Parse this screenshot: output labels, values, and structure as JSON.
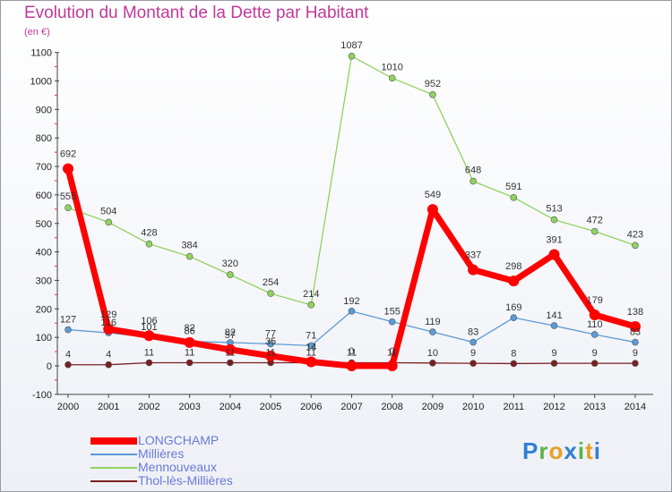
{
  "title": "Evolution du Montant de la Dette par Habitant",
  "subtitle": "(en €)",
  "logo": {
    "text": "Proxiti",
    "letters": [
      {
        "ch": "P",
        "color": "#2f7fd6"
      },
      {
        "ch": "r",
        "color": "#58b34a"
      },
      {
        "ch": "o",
        "color": "#e7a025"
      },
      {
        "ch": "x",
        "color": "#2f7fd6"
      },
      {
        "ch": "i",
        "color": "#58b34a"
      },
      {
        "ch": "t",
        "color": "#e7a025"
      },
      {
        "ch": "i",
        "color": "#2f7fd6"
      }
    ]
  },
  "chart_data": {
    "type": "line",
    "title": "Evolution du Montant de la Dette par Habitant",
    "ylabel": "(en €)",
    "xlabel": "",
    "categories": [
      "2000",
      "2001",
      "2002",
      "2003",
      "2004",
      "2005",
      "2006",
      "2007",
      "2008",
      "2009",
      "2010",
      "2011",
      "2012",
      "2013",
      "2014"
    ],
    "ylim": [
      -100,
      1100
    ],
    "yticks": [
      "-100",
      "0",
      "100",
      "200",
      "300",
      "400",
      "500",
      "600",
      "700",
      "800",
      "900",
      "1000",
      "1100"
    ],
    "grid": false,
    "legend": "bottom-left",
    "series": [
      {
        "name": "LONGCHAMP",
        "color": "#ff0000",
        "values": [
          692,
          129,
          106,
          82,
          57,
          35,
          14,
          0,
          0,
          549,
          337,
          298,
          391,
          179,
          138
        ]
      },
      {
        "name": "Millières",
        "color": "#5b9bd5",
        "values": [
          127,
          116,
          101,
          86,
          82,
          77,
          71,
          192,
          155,
          119,
          83,
          169,
          141,
          110,
          83
        ]
      },
      {
        "name": "Mennouveaux",
        "color": "#8fd35f",
        "values": [
          555,
          504,
          428,
          384,
          320,
          254,
          214,
          1087,
          1010,
          952,
          648,
          591,
          513,
          472,
          423
        ]
      },
      {
        "name": "Thol-lès-Millières",
        "color": "#7a1f1f",
        "values": [
          4,
          4,
          11,
          11,
          11,
          11,
          11,
          11,
          11,
          10,
          9,
          8,
          9,
          9,
          9
        ]
      }
    ]
  }
}
